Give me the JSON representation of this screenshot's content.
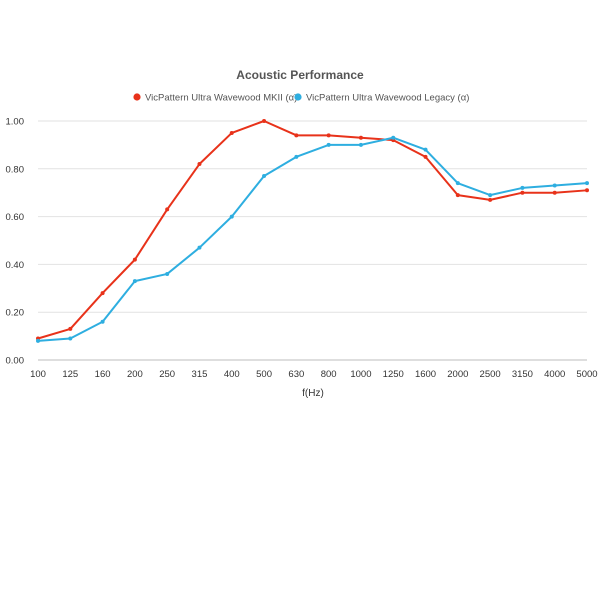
{
  "chart_data": {
    "type": "line",
    "title": "Acoustic Performance",
    "xlabel": "f(Hz)",
    "ylabel": "",
    "categories": [
      "100",
      "125",
      "160",
      "200",
      "250",
      "315",
      "400",
      "500",
      "630",
      "800",
      "1000",
      "1250",
      "1600",
      "2000",
      "2500",
      "3150",
      "4000",
      "5000"
    ],
    "ylim": [
      0,
      1.0
    ],
    "yticks": [
      "0.00",
      "0.20",
      "0.40",
      "0.60",
      "0.80",
      "1.00"
    ],
    "grid": true,
    "legend_position": "top",
    "series": [
      {
        "name": "VicPattern Ultra Wavewood MKII (α)",
        "color": "#e8321a",
        "values": [
          0.09,
          0.13,
          0.28,
          0.42,
          0.63,
          0.82,
          0.95,
          1.0,
          0.94,
          0.94,
          0.93,
          0.92,
          0.85,
          0.69,
          0.67,
          0.7,
          0.7,
          0.71
        ]
      },
      {
        "name": "VicPattern Ultra Wavewood Legacy (α)",
        "color": "#2eaee0",
        "values": [
          0.08,
          0.09,
          0.16,
          0.33,
          0.36,
          0.47,
          0.6,
          0.77,
          0.85,
          0.9,
          0.9,
          0.93,
          0.88,
          0.74,
          0.69,
          0.72,
          0.73,
          0.74
        ]
      }
    ]
  }
}
